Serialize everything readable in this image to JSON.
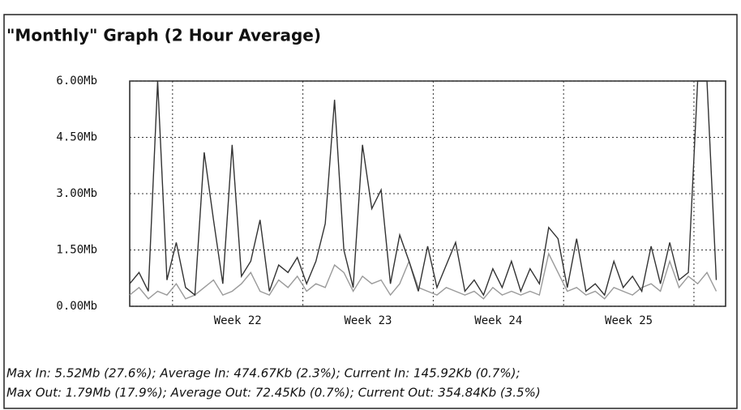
{
  "chart_data": {
    "type": "line",
    "title": "\"Monthly\" Graph (2 Hour Average)",
    "x": [
      0,
      0.5,
      1,
      1.5,
      2,
      2.5,
      3,
      3.5,
      4,
      4.5,
      5,
      5.5,
      6,
      6.5,
      7,
      7.5,
      8,
      8.5,
      9,
      9.5,
      10,
      10.5,
      11,
      11.5,
      12,
      12.5,
      13,
      13.5,
      14,
      14.5,
      15,
      15.5,
      16,
      16.5,
      17,
      17.5,
      18,
      18.5,
      19,
      19.5,
      20,
      20.5,
      21,
      21.5,
      22,
      22.5,
      23,
      23.5,
      24,
      24.5,
      25,
      25.5,
      26,
      26.5,
      27,
      27.5,
      28,
      28.5,
      29,
      29.5,
      30,
      30.5,
      31,
      31.5
    ],
    "series": [
      {
        "color": "#333333",
        "values": [
          0.6,
          0.9,
          0.4,
          6.0,
          0.7,
          1.7,
          0.5,
          0.3,
          4.1,
          2.3,
          0.6,
          4.3,
          0.8,
          1.2,
          2.3,
          0.4,
          1.1,
          0.9,
          1.3,
          0.6,
          1.2,
          2.2,
          5.5,
          1.5,
          0.5,
          4.3,
          2.6,
          3.1,
          0.6,
          1.9,
          1.2,
          0.4,
          1.6,
          0.5,
          1.1,
          1.7,
          0.4,
          0.7,
          0.3,
          1.0,
          0.5,
          1.2,
          0.4,
          1.0,
          0.6,
          2.1,
          1.8,
          0.5,
          1.8,
          0.4,
          0.6,
          0.3,
          1.2,
          0.5,
          0.8,
          0.4,
          1.6,
          0.6,
          1.7,
          0.7,
          0.9,
          6.0,
          6.0,
          0.7
        ]
      },
      {
        "color": "#9a9a9a",
        "values": [
          0.3,
          0.5,
          0.2,
          0.4,
          0.3,
          0.6,
          0.2,
          0.3,
          0.5,
          0.7,
          0.3,
          0.4,
          0.6,
          0.9,
          0.4,
          0.3,
          0.7,
          0.5,
          0.8,
          0.4,
          0.6,
          0.5,
          1.1,
          0.9,
          0.4,
          0.8,
          0.6,
          0.7,
          0.3,
          0.6,
          1.2,
          0.5,
          0.4,
          0.3,
          0.5,
          0.4,
          0.3,
          0.4,
          0.2,
          0.5,
          0.3,
          0.4,
          0.3,
          0.4,
          0.3,
          1.4,
          0.9,
          0.4,
          0.5,
          0.3,
          0.4,
          0.2,
          0.5,
          0.4,
          0.3,
          0.5,
          0.6,
          0.4,
          1.2,
          0.5,
          0.8,
          0.6,
          0.9,
          0.4
        ]
      }
    ],
    "xlim": [
      0,
      32
    ],
    "xgrid": [
      2.3,
      9.3,
      16.3,
      23.3,
      30.3
    ],
    "xticks": [
      {
        "value": 5.8,
        "label": "Week 22"
      },
      {
        "value": 12.8,
        "label": "Week 23"
      },
      {
        "value": 19.8,
        "label": "Week 24"
      },
      {
        "value": 26.8,
        "label": "Week 25"
      }
    ],
    "ylim": [
      0,
      6
    ],
    "yticks": [
      {
        "value": 0,
        "label": "0.00Mb"
      },
      {
        "value": 1.5,
        "label": "1.50Mb"
      },
      {
        "value": 3,
        "label": "3.00Mb"
      },
      {
        "value": 4.5,
        "label": "4.50Mb"
      },
      {
        "value": 6,
        "label": "6.00Mb"
      }
    ],
    "grid": true,
    "stats": [
      "Max In: 5.52Mb (27.6%); Average In: 474.67Kb (2.3%); Current In: 145.92Kb (0.7%);",
      "Max Out: 1.79Mb (17.9%); Average Out: 72.45Kb (0.7%); Current Out: 354.84Kb (3.5%)"
    ]
  }
}
